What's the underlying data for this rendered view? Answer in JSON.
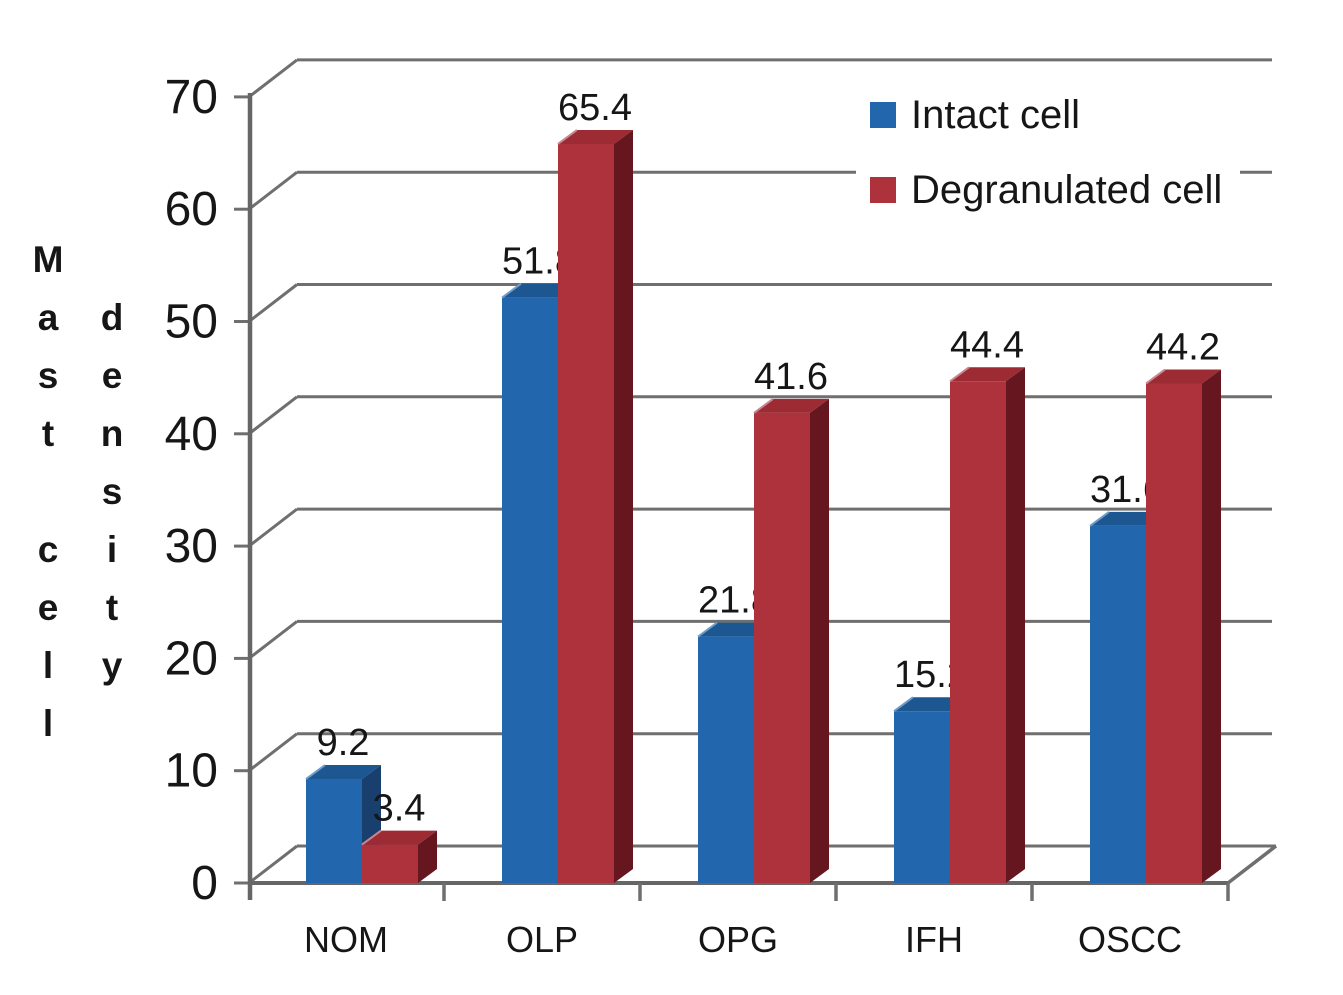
{
  "figure": {
    "background": "#ffffff",
    "text_color": "#161616",
    "grid_color": "#6f6f6f",
    "axis_color": "#666666"
  },
  "y_axis_title": {
    "column1": "Mast cell",
    "column2": "density",
    "full_text": "Mast cell density"
  },
  "legend": {
    "items": [
      {
        "label": "Intact cell",
        "color": "#2267AE"
      },
      {
        "label": "Degranulated cell",
        "color": "#AE323C"
      }
    ]
  },
  "chart_data": {
    "type": "bar",
    "subtype": "3d-clustered-column",
    "title": "",
    "xlabel": "",
    "ylabel": "Mast cell density",
    "categories": [
      "NOM",
      "OLP",
      "OPG",
      "IFH",
      "OSCC"
    ],
    "series": [
      {
        "name": "Intact cell",
        "values": [
          9.2,
          51.8,
          21.8,
          15.2,
          31.6
        ],
        "colors": {
          "front": "#2267AE",
          "top": "#1D5792",
          "side": "#183F6D",
          "bevel": "#6E9CC9"
        }
      },
      {
        "name": "Degranulated cell",
        "values": [
          3.4,
          65.4,
          41.6,
          44.4,
          44.2
        ],
        "colors": {
          "front": "#AE323C",
          "top": "#9C2B34",
          "side": "#66161F",
          "bevel": "#C88690"
        }
      }
    ],
    "value_labels": [
      [
        "9.2",
        "51.8",
        "21.8",
        "15.2",
        "31.6"
      ],
      [
        "3.4",
        "65.4",
        "41.6",
        "44.4",
        "44.2"
      ]
    ],
    "yticks": [
      0,
      10,
      20,
      30,
      40,
      50,
      60,
      70
    ],
    "ylim": [
      0,
      70
    ],
    "grid": true,
    "legend_position": "top-right"
  }
}
